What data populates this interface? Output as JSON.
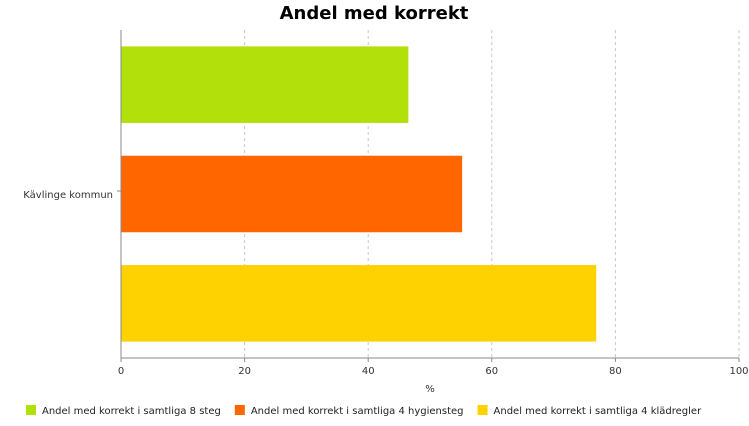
{
  "chart_data": {
    "type": "bar",
    "orientation": "horizontal",
    "title": "Andel med korrekt",
    "categories": [
      "Kävlinge kommun"
    ],
    "series": [
      {
        "name": "Andel med korrekt i samtliga 8 steg",
        "values": [
          46.5
        ],
        "color": "#b2e00a"
      },
      {
        "name": "Andel med korrekt i samtliga 4 hygiensteg",
        "values": [
          55.2
        ],
        "color": "#ff6600"
      },
      {
        "name": "Andel med korrekt i samtliga 4 klädregler",
        "values": [
          76.9
        ],
        "color": "#fdd200"
      }
    ],
    "xlabel": "%",
    "xlim": [
      0,
      100
    ],
    "xticks": [
      "0",
      "20",
      "40",
      "60",
      "80",
      "100"
    ],
    "grid": true,
    "legend_position": "bottom"
  }
}
